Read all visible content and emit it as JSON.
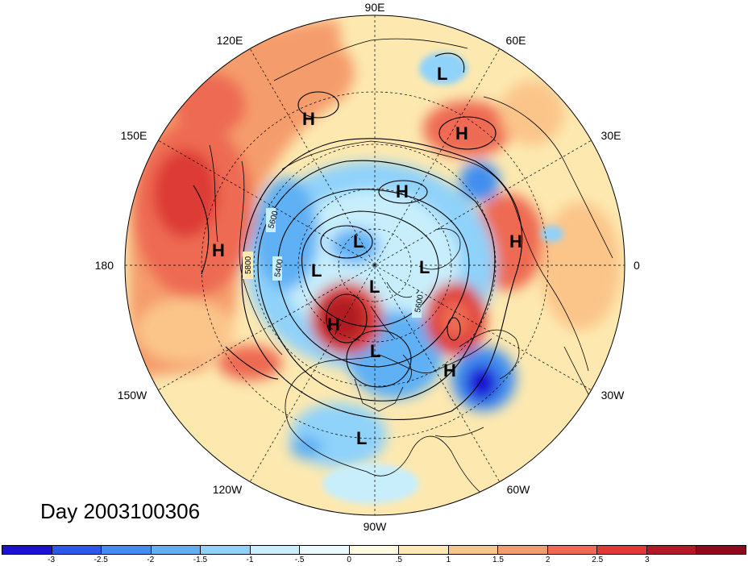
{
  "day_label": "Day 2003100306",
  "longitude_labels": {
    "top": "90E",
    "upper_left": "120E",
    "upper_right": "60E",
    "left_upper": "150E",
    "right_upper": "30E",
    "left": "180",
    "right": "0",
    "left_lower": "150W",
    "right_lower": "30W",
    "lower_left": "120W",
    "lower_right": "60W",
    "bottom": "90W"
  },
  "contour_labels": [
    "5800",
    "5600",
    "5400",
    "5600"
  ],
  "pressure_centers": [
    {
      "name": "low-center-1",
      "label": "L"
    },
    {
      "name": "high-center-1",
      "label": "H"
    },
    {
      "name": "high-center-2",
      "label": "H"
    },
    {
      "name": "high-center-3",
      "label": "H"
    },
    {
      "name": "high-center-4",
      "label": "H"
    },
    {
      "name": "high-center-5",
      "label": "H"
    },
    {
      "name": "low-center-2",
      "label": "L"
    },
    {
      "name": "low-center-3",
      "label": "L"
    },
    {
      "name": "low-center-4",
      "label": "L"
    },
    {
      "name": "low-center-5",
      "label": "L"
    },
    {
      "name": "high-center-6",
      "label": "H"
    },
    {
      "name": "low-center-6",
      "label": "L"
    },
    {
      "name": "high-center-7",
      "label": "H"
    },
    {
      "name": "low-center-7",
      "label": "L"
    }
  ],
  "colorbar": {
    "colors": [
      "#1c10d4",
      "#2a5ae8",
      "#3f8ef0",
      "#5fb0f4",
      "#8fd2fa",
      "#c8eefc",
      "#eafaff",
      "#fffbe0",
      "#fde9b0",
      "#fbc58a",
      "#f59c6c",
      "#ee6b52",
      "#dd3a36",
      "#b01a24",
      "#8c0a1c"
    ],
    "ticks": [
      "-3",
      "-2.5",
      "-2",
      "-1.5",
      "-1",
      "-.5",
      "0",
      ".5",
      "1",
      "1.5",
      "2",
      "2.5",
      "3"
    ]
  },
  "anomaly_colors": {
    "strong_positive": "#b01a24",
    "positive": "#ee6b52",
    "weak_positive": "#fbc58a",
    "neutral": "#fffbe0",
    "weak_negative": "#c8eefc",
    "negative": "#5fb0f4",
    "strong_negative": "#1c10d4"
  }
}
